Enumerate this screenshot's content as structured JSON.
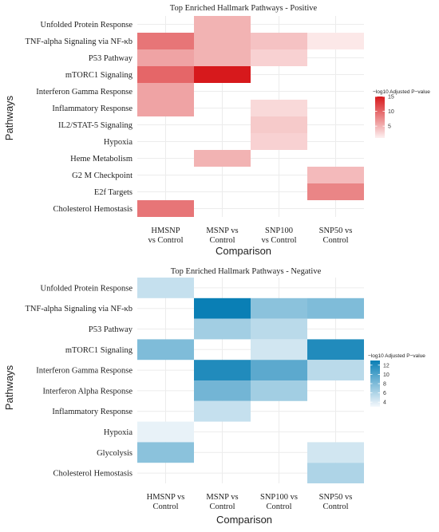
{
  "chart_data": [
    {
      "type": "heatmap",
      "title": "Top Enriched Hallmark Pathways - Positive",
      "xlabel": "Comparison",
      "ylabel": "Pathways",
      "x_categories": [
        "HMSNP\nvs Control",
        "MSNP vs\nControl",
        "SNP100\nvs Control",
        "SNP50 vs\nControl"
      ],
      "y_categories": [
        "Unfolded Protein Response",
        "TNF-alpha Signaling via NF-κb",
        "P53 Pathway",
        "mTORC1 Signaling",
        "Interferon Gamma Response",
        "Inflammatory Response",
        "IL2/STAT-5 Signaling",
        "Hypoxia",
        "Heme Metabolism",
        "G2 M Checkpoint",
        "E2f Targets",
        "Cholesterol Hemostasis"
      ],
      "values": [
        [
          null,
          5,
          null,
          null
        ],
        [
          9,
          5,
          4,
          1.5
        ],
        [
          6,
          5,
          3,
          null
        ],
        [
          10,
          15,
          null,
          null
        ],
        [
          6,
          null,
          null,
          null
        ],
        [
          6,
          null,
          2.5,
          null
        ],
        [
          null,
          null,
          3.5,
          null
        ],
        [
          null,
          null,
          3,
          null
        ],
        [
          null,
          5,
          null,
          null
        ],
        [
          null,
          null,
          null,
          4.5
        ],
        [
          null,
          null,
          null,
          8
        ],
        [
          9,
          null,
          null,
          null
        ]
      ],
      "color_scale": {
        "low": "#fdf0f0",
        "high": "#d7191c",
        "min": 1,
        "max": 15
      },
      "legend": {
        "title": "−log10 Adjusted P−value",
        "ticks": [
          15,
          10,
          5
        ]
      },
      "grid": true
    },
    {
      "type": "heatmap",
      "title": "Top Enriched Hallmark Pathways - Negative",
      "xlabel": "Comparison",
      "ylabel": "Pathways",
      "x_categories": [
        "HMSNP vs\nControl",
        "MSNP vs\nControl",
        "SNP100 vs\nControl",
        "SNP50 vs\nControl"
      ],
      "y_categories": [
        "Unfolded Protein Response",
        "TNF-alpha Signaling via NF-κb",
        "P53 Pathway",
        "mTORC1 Signaling",
        "Interferon Gamma Response",
        "Interferon Alpha Response",
        "Inflammatory Response",
        "Hypoxia",
        "Glycolysis",
        "Cholesterol Hemostasis"
      ],
      "values": [
        [
          5,
          null,
          null,
          null
        ],
        [
          null,
          13,
          7.5,
          8
        ],
        [
          null,
          6.5,
          5.5,
          null
        ],
        [
          8,
          null,
          4.5,
          12
        ],
        [
          null,
          12,
          9.5,
          5.5
        ],
        [
          null,
          8.5,
          6.5,
          null
        ],
        [
          null,
          5,
          null,
          null
        ],
        [
          3.5,
          null,
          null,
          null
        ],
        [
          7.5,
          null,
          null,
          4.5
        ],
        [
          null,
          null,
          null,
          6
        ]
      ],
      "color_scale": {
        "low": "#f4f8fc",
        "high": "#0a7fb5",
        "min": 3,
        "max": 13
      },
      "legend": {
        "title": "−log10 Adjusted P−value",
        "ticks": [
          12,
          10,
          8,
          6,
          4
        ]
      },
      "grid": true
    }
  ]
}
